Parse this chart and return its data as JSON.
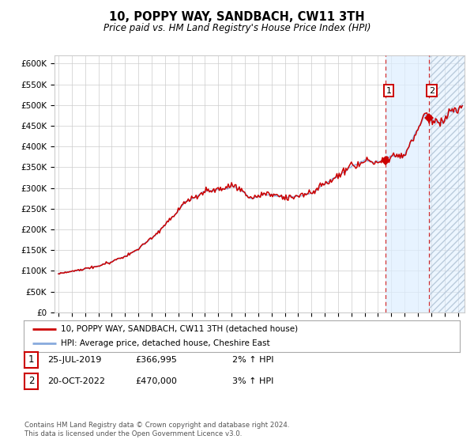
{
  "title": "10, POPPY WAY, SANDBACH, CW11 3TH",
  "subtitle": "Price paid vs. HM Land Registry's House Price Index (HPI)",
  "xlim": [
    1994.7,
    2025.5
  ],
  "ylim": [
    0,
    620000
  ],
  "yticks": [
    0,
    50000,
    100000,
    150000,
    200000,
    250000,
    300000,
    350000,
    400000,
    450000,
    500000,
    550000,
    600000
  ],
  "ytick_labels": [
    "£0",
    "£50K",
    "£100K",
    "£150K",
    "£200K",
    "£250K",
    "£300K",
    "£350K",
    "£400K",
    "£450K",
    "£500K",
    "£550K",
    "£600K"
  ],
  "xtick_years": [
    1995,
    1996,
    1997,
    1998,
    1999,
    2000,
    2001,
    2002,
    2003,
    2004,
    2005,
    2006,
    2007,
    2008,
    2009,
    2010,
    2011,
    2012,
    2013,
    2014,
    2015,
    2016,
    2017,
    2018,
    2019,
    2020,
    2021,
    2022,
    2023,
    2024,
    2025
  ],
  "sale1_x": 2019.56,
  "sale1_y": 366995,
  "sale2_x": 2022.8,
  "sale2_y": 470000,
  "vline1_x": 2019.56,
  "vline2_x": 2022.8,
  "legend_line1": "10, POPPY WAY, SANDBACH, CW11 3TH (detached house)",
  "legend_line2": "HPI: Average price, detached house, Cheshire East",
  "table_row1": [
    "1",
    "25-JUL-2019",
    "£366,995",
    "2% ↑ HPI"
  ],
  "table_row2": [
    "2",
    "20-OCT-2022",
    "£470,000",
    "3% ↑ HPI"
  ],
  "footer": "Contains HM Land Registry data © Crown copyright and database right 2024.\nThis data is licensed under the Open Government Licence v3.0.",
  "price_line_color": "#cc0000",
  "hpi_line_color": "#88aadd",
  "shade_color": "#ddeeff",
  "vline_color": "#cc0000",
  "background_color": "#ffffff",
  "hatch_color": "#bbccdd"
}
